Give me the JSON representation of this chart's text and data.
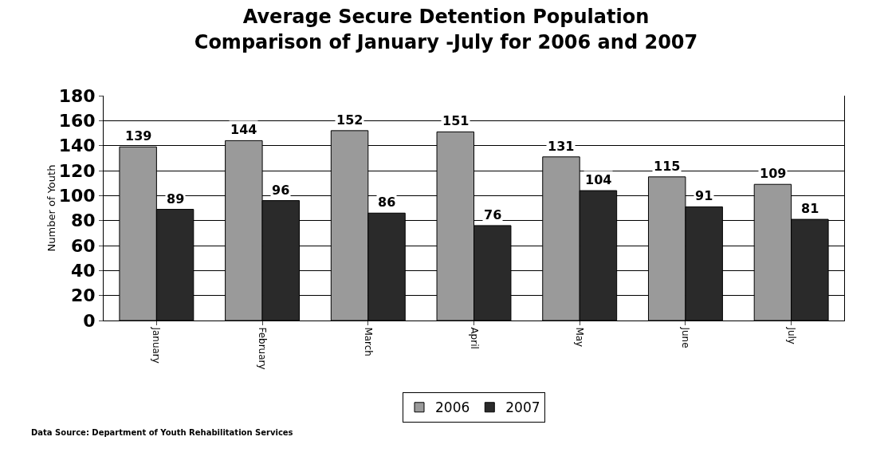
{
  "chart_data": {
    "type": "bar",
    "title": "Average Secure Detention Population\nComparison of January -July for 2006 and 2007",
    "ylabel": "Number of Youth",
    "categories": [
      "January",
      "February",
      "March",
      "April",
      "May",
      "June",
      "July"
    ],
    "series": [
      {
        "name": "2006",
        "color": "#9a9a9a",
        "values": [
          139,
          144,
          152,
          151,
          131,
          115,
          109
        ]
      },
      {
        "name": "2007",
        "color": "#2a2a2a",
        "values": [
          89,
          96,
          86,
          76,
          104,
          91,
          81
        ]
      }
    ],
    "ylim": [
      0,
      180
    ],
    "yticks": [
      0,
      20,
      40,
      60,
      80,
      100,
      120,
      140,
      160,
      180
    ],
    "grid": "y",
    "legend": "bottom",
    "data_labels": true,
    "annotations": [
      "Data Source: Department of Youth Rehabilitation Services"
    ]
  }
}
